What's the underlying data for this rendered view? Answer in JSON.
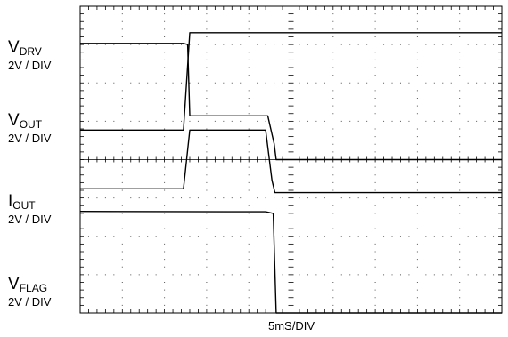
{
  "chart_data": {
    "type": "line",
    "xlabel": "5mS/DIV",
    "x_divisions": 10,
    "y_divisions": 8,
    "x_units": "div",
    "y_units": "div",
    "grid": true,
    "series": [
      {
        "name_main": "V",
        "name_sub": "DRV",
        "scale": "2V / DIV",
        "points": [
          [
            0,
            4.77
          ],
          [
            2.45,
            4.77
          ],
          [
            2.6,
            7.31
          ],
          [
            10,
            7.31
          ]
        ]
      },
      {
        "name_main": "V",
        "name_sub": "OUT",
        "scale": "2V / DIV",
        "points": [
          [
            0,
            7.03
          ],
          [
            2.45,
            7.03
          ],
          [
            2.55,
            7.0
          ],
          [
            2.6,
            5.14
          ],
          [
            4.45,
            5.14
          ],
          [
            4.6,
            4.42
          ],
          [
            4.65,
            4.0
          ],
          [
            10,
            4.0
          ]
        ]
      },
      {
        "name_main": "I",
        "name_sub": "OUT",
        "scale": "2V / DIV",
        "points": [
          [
            0,
            3.24
          ],
          [
            1.0,
            3.24
          ],
          [
            2.45,
            3.24
          ],
          [
            2.6,
            4.77
          ],
          [
            4.4,
            4.77
          ],
          [
            4.55,
            3.46
          ],
          [
            4.62,
            3.14
          ],
          [
            4.8,
            3.14
          ],
          [
            10,
            3.14
          ]
        ]
      },
      {
        "name_main": "V",
        "name_sub": "FLAG",
        "scale": "2V / DIV",
        "points": [
          [
            0,
            2.65
          ],
          [
            4.4,
            2.64
          ],
          [
            4.58,
            2.6
          ],
          [
            4.65,
            0.0
          ],
          [
            10,
            0.0
          ]
        ]
      }
    ]
  }
}
